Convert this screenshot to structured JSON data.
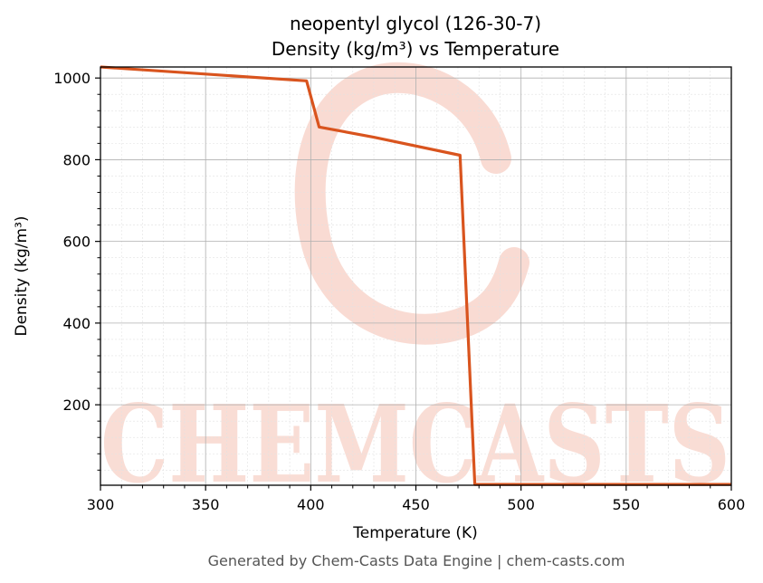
{
  "colors": {
    "line": "#d9541e",
    "watermark": "#f7cfc4",
    "grid_major": "#b0b0b0",
    "grid_minor": "#e2e2e2",
    "footer": "#555555"
  },
  "watermark": {
    "text": "CHEMCASTS"
  },
  "footer": "Generated by Chem-Casts Data Engine | chem-casts.com",
  "chart_data": {
    "type": "line",
    "title": "neopentyl glycol (126-30-7)",
    "subtitle": "Density (kg/m³) vs Temperature",
    "xlabel": "Temperature (K)",
    "ylabel": "Density (kg/m³)",
    "xlim": [
      300,
      600
    ],
    "ylim": [
      3,
      1027
    ],
    "xticks": [
      300,
      350,
      400,
      450,
      500,
      550,
      600
    ],
    "yticks": [
      200,
      400,
      600,
      800,
      1000
    ],
    "grid": true,
    "minor_grid": true,
    "legend": "none",
    "series": [
      {
        "x": [
          300,
          398,
          404,
          430,
          471,
          478,
          600
        ],
        "y": [
          1027,
          993,
          880,
          855,
          811,
          5,
          5
        ]
      }
    ]
  }
}
